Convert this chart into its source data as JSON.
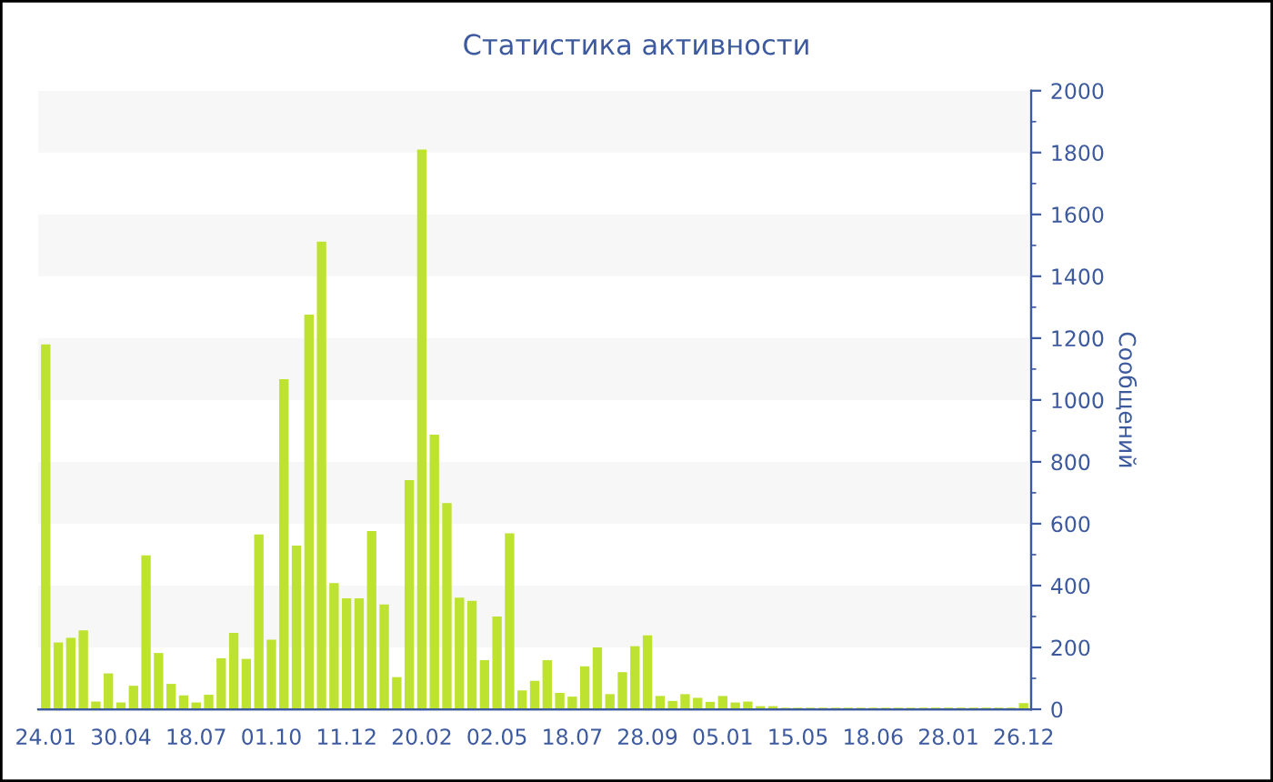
{
  "chart_data": {
    "type": "bar",
    "title": "Статистика активности",
    "y2label": "Сообщений",
    "categories": [
      "24.01",
      null,
      null,
      null,
      null,
      null,
      "30.04",
      null,
      null,
      null,
      null,
      null,
      "18.07",
      null,
      null,
      null,
      null,
      null,
      "01.10",
      null,
      null,
      null,
      null,
      null,
      "11.12",
      null,
      null,
      null,
      null,
      null,
      "20.02",
      null,
      null,
      null,
      null,
      null,
      "02.05",
      null,
      null,
      null,
      null,
      null,
      "18.07",
      null,
      null,
      null,
      null,
      null,
      "28.09",
      null,
      null,
      null,
      null,
      null,
      "05.01",
      null,
      null,
      null,
      null,
      null,
      "15.05",
      null,
      null,
      null,
      null,
      null,
      "18.06",
      null,
      null,
      null,
      null,
      null,
      "28.01",
      null,
      null,
      null,
      null,
      null,
      "26.12"
    ],
    "series": [
      {
        "color": "#bde22f",
        "axis": "y2",
        "values": [
          1180,
          216,
          231,
          255,
          25,
          116,
          22,
          76,
          498,
          182,
          82,
          45,
          22,
          47,
          165,
          247,
          163,
          565,
          225,
          1067,
          529,
          1276,
          1512,
          408,
          359,
          359,
          576,
          339,
          104,
          741,
          1810,
          888,
          667,
          361,
          351,
          159,
          300,
          569,
          61,
          92,
          159,
          53,
          41,
          139,
          200,
          49,
          120,
          204,
          239,
          43,
          27,
          49,
          37,
          24,
          43,
          22,
          25,
          10,
          10,
          5,
          5,
          5,
          5,
          5,
          5,
          5,
          5,
          5,
          5,
          5,
          5,
          5,
          5,
          5,
          5,
          5,
          5,
          5,
          20
        ]
      }
    ],
    "y2lim": [
      0,
      2000
    ],
    "y2ticks": [
      0,
      200,
      400,
      600,
      800,
      1000,
      1200,
      1400,
      1600,
      1800,
      2000
    ],
    "bands": [
      {
        "axis": "y2",
        "from": 200,
        "to": 400,
        "color": "#f7f7f7"
      },
      {
        "axis": "y2",
        "from": 600,
        "to": 800,
        "color": "#f7f7f7"
      },
      {
        "axis": "y2",
        "from": 1000,
        "to": 1200,
        "color": "#f7f7f7"
      },
      {
        "axis": "y2",
        "from": 1400,
        "to": 1600,
        "color": "#f7f7f7"
      },
      {
        "axis": "y2",
        "from": 1800,
        "to": 2000,
        "color": "#f7f7f7"
      }
    ],
    "grid": false
  }
}
